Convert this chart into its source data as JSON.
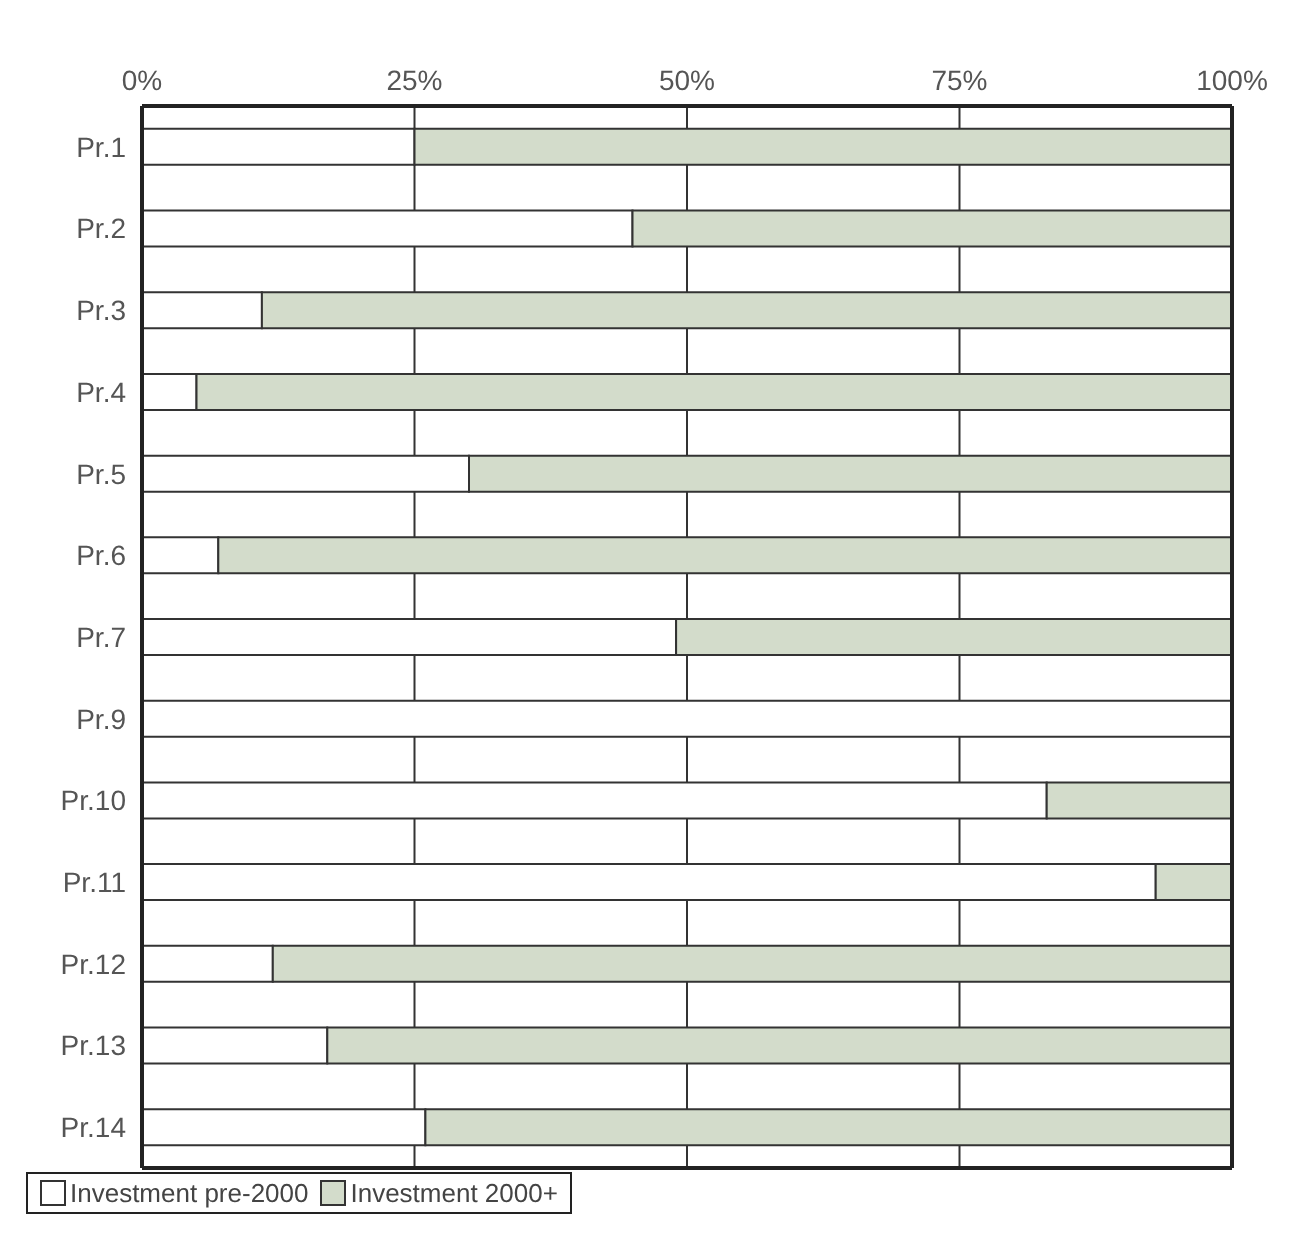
{
  "chart_data": {
    "type": "bar",
    "orientation": "horizontal",
    "stacked": true,
    "categories": [
      "Pr.1",
      "Pr.2",
      "Pr.3",
      "Pr.4",
      "Pr.5",
      "Pr.6",
      "Pr.7",
      "Pr.9",
      "Pr.10",
      "Pr.11",
      "Pr.12",
      "Pr.13",
      "Pr.14"
    ],
    "series": [
      {
        "name": "Investment pre-2000",
        "color": "#ffffff",
        "values": [
          25,
          45,
          11,
          5,
          30,
          7,
          49,
          100,
          83,
          93,
          12,
          17,
          26
        ]
      },
      {
        "name": "Investment 2000+",
        "color": "#d3dccb",
        "values": [
          75,
          55,
          89,
          95,
          70,
          93,
          51,
          0,
          17,
          7,
          88,
          83,
          74
        ]
      }
    ],
    "xlim": [
      0,
      100
    ],
    "xticks": [
      {
        "value": 0,
        "label": "0%"
      },
      {
        "value": 25,
        "label": "25%"
      },
      {
        "value": 50,
        "label": "50%"
      },
      {
        "value": 75,
        "label": "75%"
      },
      {
        "value": 100,
        "label": "100%"
      }
    ],
    "grid": "x",
    "legend": "bottom"
  }
}
